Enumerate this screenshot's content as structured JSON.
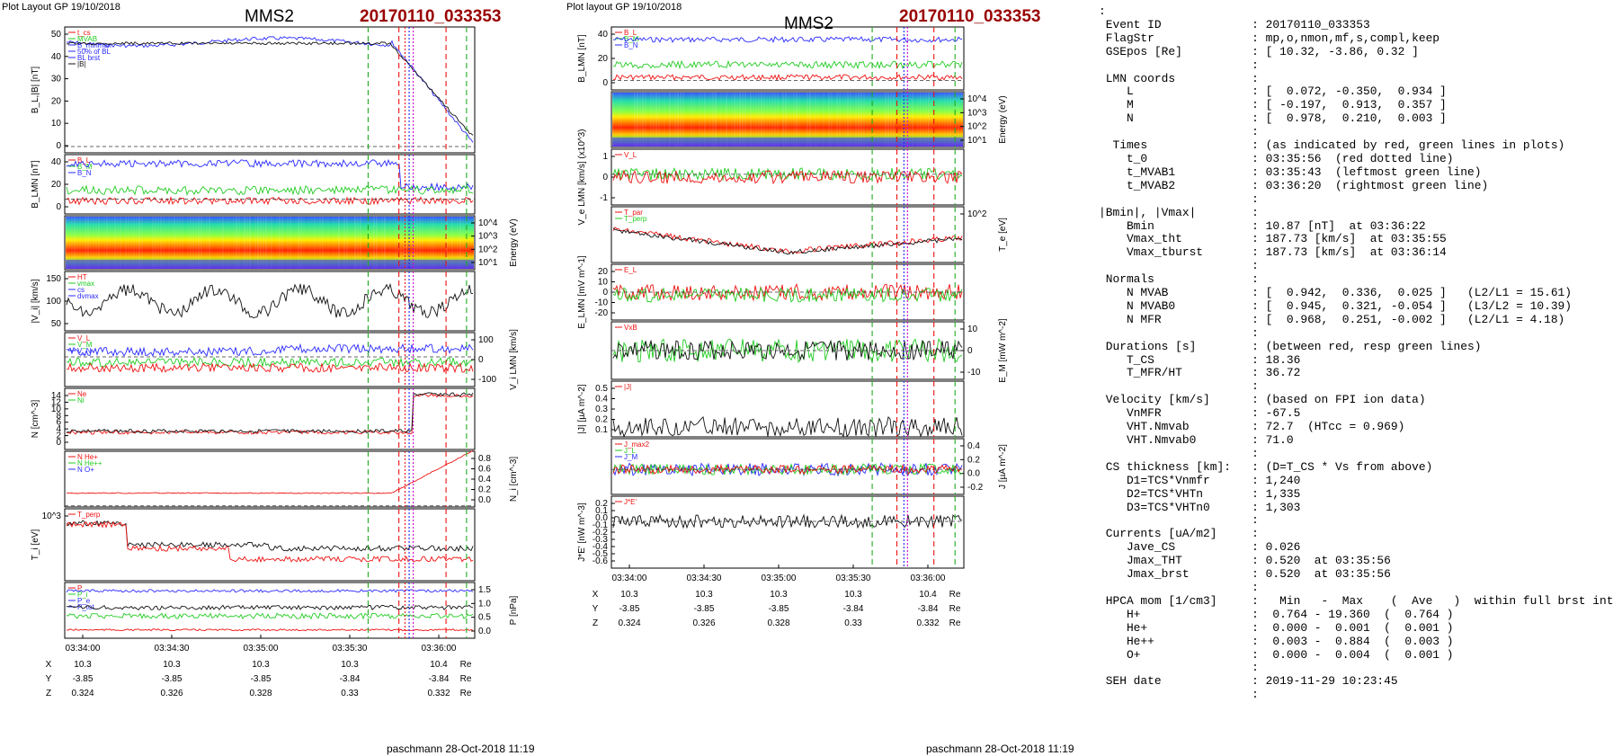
{
  "left": {
    "header": "Plot Layout GP 19/10/2018",
    "title": "MMS2",
    "event": "20170110_033353",
    "footer": "paschmann 28-Oct-2018 11:19",
    "panels": [
      {
        "ylabel": "B_L,|B| [nT]",
        "ticks": [
          "50",
          "40",
          "30",
          "20",
          "10",
          "0"
        ],
        "legend": [
          "t_cs",
          "MVAB",
          "B_minmax",
          "50% of BL",
          "BL brst",
          "|B|"
        ]
      },
      {
        "ylabel": "B_LMN [nT]",
        "ticks": [
          "40",
          "20",
          "0"
        ],
        "legend": [
          "B_L",
          "B_M",
          "B_N"
        ]
      },
      {
        "ylabel": "Energy (eV)",
        "ticks": [
          "10^4",
          "10^3",
          "10^2",
          "10^1"
        ]
      },
      {
        "ylabel": "|V_i| [km/s]",
        "ticks": [
          "150",
          "100",
          "50"
        ],
        "legend": [
          "HT",
          "vmax",
          "cs",
          "dvmax"
        ]
      },
      {
        "ylabel": "V_i LMN [km/s]",
        "ticks": [
          "100",
          "0",
          "-100"
        ],
        "legend": [
          "V_L",
          "V_M",
          "V_N"
        ]
      },
      {
        "ylabel": "N [cm^-3]",
        "ticks": [
          "14",
          "12",
          "10",
          "8",
          "6",
          "4",
          "2",
          "0"
        ],
        "legend": [
          "Ne",
          "Ni"
        ]
      },
      {
        "ylabel": "N_i [cm^-3]",
        "ticks": [
          "0.8",
          "0.6",
          "0.4",
          "0.2",
          "0.0"
        ],
        "legend": [
          "N He+",
          "N He++",
          "N O+"
        ]
      },
      {
        "ylabel": "T_i [eV]",
        "ticks": [
          "10^3"
        ],
        "legend": [
          "T_perp"
        ]
      },
      {
        "ylabel": "P [nPa]",
        "ticks": [
          "1.5",
          "1.0",
          "0.5",
          "0.0"
        ],
        "legend": [
          "P",
          "P_i",
          "P_e",
          "P_tot"
        ]
      }
    ],
    "xticks": [
      "03:34:00",
      "03:34:30",
      "03:35:00",
      "03:35:30",
      "03:36:00"
    ],
    "pos": {
      "X": [
        "10.3",
        "10.3",
        "10.3",
        "10.3",
        "10.4"
      ],
      "Y": [
        "-3.85",
        "-3.85",
        "-3.85",
        "-3.84",
        "-3.84"
      ],
      "Z": [
        "0.324",
        "0.326",
        "0.328",
        "0.33",
        "0.332"
      ],
      "unit": "Re"
    }
  },
  "middle": {
    "header": "Plot layout GP 19/10/2018",
    "title": "MMS2",
    "event": "20170110_033353",
    "footer": "paschmann 28-Oct-2018 11:19",
    "panels": [
      {
        "ylabel": "B_LMN [nT]",
        "ticks": [
          "40",
          "20",
          "0"
        ],
        "legend": [
          "B_L",
          "B_M",
          "B_N"
        ]
      },
      {
        "ylabel": "Energy (eV)",
        "ticks": [
          "10^4",
          "10^3",
          "10^2",
          "10^1"
        ]
      },
      {
        "ylabel": "V_e LMN [km/s] (x10^3)",
        "ticks": [
          "1",
          "0",
          "-1"
        ],
        "legend": [
          "V_L"
        ]
      },
      {
        "ylabel": "T_e [eV]",
        "ticks": [
          "10^2"
        ],
        "legend": [
          "T_par",
          "T_perp"
        ]
      },
      {
        "ylabel": "E_LMN [mV m^-1]",
        "ticks": [
          "20",
          "10",
          "0",
          "-10",
          "-20"
        ],
        "legend": [
          "E_L"
        ]
      },
      {
        "ylabel": "E_M [mW m^-2]",
        "ticks": [
          "10",
          "0",
          "-10"
        ],
        "legend": [
          "VxB"
        ]
      },
      {
        "ylabel": "|J| [µA m^-2]",
        "ticks": [
          "0.5",
          "0.4",
          "0.3",
          "0.2",
          "0.1"
        ],
        "legend": [
          "|J|"
        ]
      },
      {
        "ylabel": "J [µA m^-2]",
        "ticks": [
          "0.4",
          "0.2",
          "0.0",
          "-0.2"
        ],
        "legend": [
          "J_max2",
          "J_L",
          "J_M"
        ]
      },
      {
        "ylabel": "J*E' [nW m^-3]",
        "ticks": [
          "0.2",
          "0.1",
          "0.0",
          "-0.1",
          "-0.2",
          "-0.3",
          "-0.4",
          "-0.5",
          "-0.6"
        ],
        "legend": [
          "J*E'"
        ]
      }
    ],
    "xticks": [
      "03:34:00",
      "03:34:30",
      "03:35:00",
      "03:35:30",
      "03:36:00"
    ],
    "pos": {
      "X": [
        "10.3",
        "10.3",
        "10.3",
        "10.3",
        "10.4"
      ],
      "Y": [
        "-3.85",
        "-3.85",
        "-3.85",
        "-3.84",
        "-3.84"
      ],
      "Z": [
        "0.324",
        "0.326",
        "0.328",
        "0.33",
        "0.332"
      ],
      "unit": "Re"
    }
  },
  "info_lines": [
    ":",
    " Event ID             : 20170110_033353",
    " FlagStr              : mp,o,nmon,mf,s,compl,keep",
    " GSEpos [Re]          : [ 10.32, -3.86, 0.32 ]",
    "                      :",
    " LMN coords           :",
    "    L                 : [  0.072, -0.350,  0.934 ]",
    "    M                 : [ -0.197,  0.913,  0.357 ]",
    "    N                 : [  0.978,  0.210,  0.003 ]",
    "                      :",
    "  Times               : (as indicated by red, green lines in plots)",
    "    t_0               : 03:35:56  (red dotted line)",
    "    t_MVAB1           : 03:35:43  (leftmost green line)",
    "    t_MVAB2           : 03:36:20  (rightmost green line)",
    "                      :",
    "|Bmin|, |Vmax|        :",
    "    Bmin              : 10.87 [nT]  at 03:36:22",
    "    Vmax_tht          : 187.73 [km/s]  at 03:35:55",
    "    Vmax_tburst       : 187.73 [km/s]  at 03:36:14",
    "                      :",
    " Normals              :",
    "    N MVAB            : [  0.942,  0.336,  0.025 ]   (L2/L1 = 15.61)",
    "    N MVAB0           : [  0.945,  0.321, -0.054 ]   (L3/L2 = 10.39)",
    "    N MFR             : [  0.968,  0.251, -0.002 ]   (L2/L1 = 4.18)",
    "                      :",
    " Durations [s]        : (between red, resp green lines)",
    "    T_CS              : 18.36",
    "    T_MFR/HT          : 36.72",
    "                      :",
    " Velocity [km/s]      : (based on FPI ion data)",
    "    VnMFR             : -67.5",
    "    VHT.Nmvab         : 72.7  (HTcc = 0.969)",
    "    VHT.Nmvab0        : 71.0",
    "                      :",
    " CS thickness [km]:   : (D=T_CS * Vs from above)",
    "    D1=TCS*Vnmfr      : 1,240",
    "    D2=TCS*VHTn       : 1,335",
    "    D3=TCS*VHTn0      : 1,303",
    "                      :",
    " Currents [uA/m2]     :",
    "    Jave_CS           : 0.026",
    "    Jmax_THT          : 0.520  at 03:35:56",
    "    Jmax_brst         : 0.520  at 03:35:56",
    "                      :",
    " HPCA mom [1/cm3]     :   Min   -  Max    (  Ave   )  within full brst int",
    "    H+                :  0.764 - 19.360  (  0.764 )",
    "    He+               :  0.000 -  0.001  (  0.001 )",
    "    He++              :  0.003 -  0.884  (  0.003 )",
    "    O+                :  0.000 -  0.004  (  0.001 )",
    "                      :",
    " SEH date             : 2019-11-29 10:23:45",
    "                      :"
  ],
  "colors": {
    "blue": "#2a2aff",
    "green": "#22cc22",
    "red": "#ee1111",
    "black": "#111111",
    "darkred": "#990000",
    "magenta": "#cc00cc"
  }
}
